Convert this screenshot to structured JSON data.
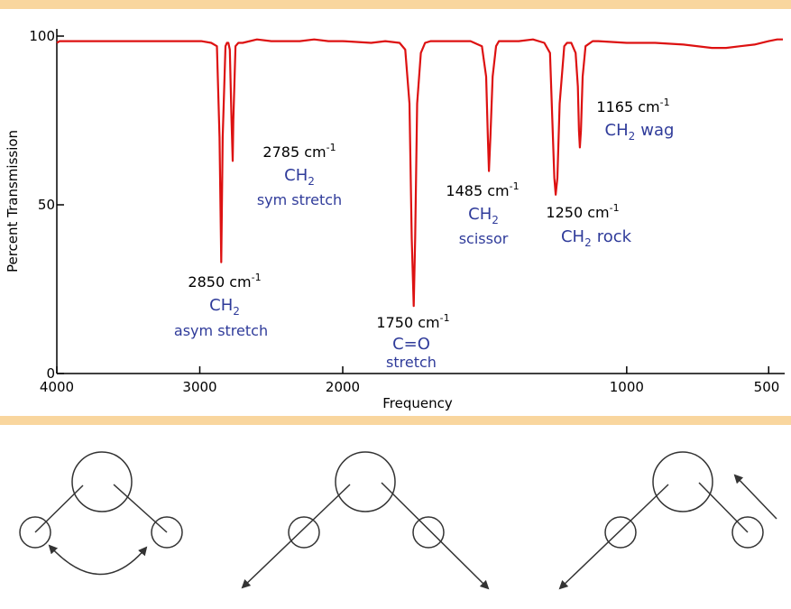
{
  "chart_data": {
    "type": "line",
    "ylabel": "Percent Transmission",
    "xlabel": "Frequency",
    "xlim": [
      4000,
      450
    ],
    "ylim": [
      0,
      100
    ],
    "x_reversed": true,
    "x_ticks": [
      4000,
      3000,
      2000,
      1000,
      500
    ],
    "x_tick_labels": [
      "4000",
      "3000",
      "2000",
      "1000",
      "500"
    ],
    "y_ticks": [
      0,
      50,
      100
    ],
    "y_tick_labels": [
      "0",
      "50",
      "100"
    ],
    "line_color": "#dd1111",
    "series": [
      {
        "x": [
          4000,
          3980,
          3600,
          3300,
          2990,
          2920,
          2880,
          2862,
          2850,
          2840,
          2820,
          2810,
          2800,
          2790,
          2778,
          2770,
          2765,
          2750,
          2730,
          2700,
          2600,
          2500,
          2400,
          2300,
          2200,
          2100,
          2000,
          1900,
          1850,
          1800,
          1780,
          1765,
          1757,
          1750,
          1745,
          1738,
          1725,
          1710,
          1690,
          1650,
          1600,
          1550,
          1510,
          1495,
          1489,
          1485,
          1480,
          1472,
          1460,
          1450,
          1420,
          1380,
          1330,
          1290,
          1270,
          1262,
          1255,
          1250,
          1244,
          1236,
          1220,
          1210,
          1195,
          1180,
          1172,
          1168,
          1165,
          1161,
          1155,
          1145,
          1120,
          1100,
          1000,
          900,
          800,
          700,
          650,
          600,
          550,
          500,
          470,
          450
        ],
        "y": [
          98,
          98.5,
          98.5,
          98.5,
          98.5,
          98,
          97,
          70,
          33,
          70,
          97,
          98,
          98,
          96,
          75,
          63,
          75,
          97,
          98,
          98,
          99,
          98.5,
          98.5,
          98.5,
          99,
          98.5,
          98.5,
          98,
          98.5,
          98,
          96,
          80,
          40,
          20,
          40,
          80,
          95,
          98,
          98.5,
          98.5,
          98.5,
          98.5,
          97,
          88,
          70,
          60,
          70,
          88,
          97,
          98.5,
          98.5,
          98.5,
          99,
          98,
          95,
          75,
          58,
          53,
          58,
          80,
          97,
          98,
          98,
          95,
          85,
          72,
          67,
          72,
          88,
          97,
          98.5,
          98.5,
          98,
          98,
          97.5,
          96.5,
          96.5,
          97,
          97.5,
          98.5,
          99,
          99
        ]
      }
    ],
    "annotations": [
      {
        "wavenumber": "2850 cm",
        "superscript": "-1",
        "group": "CH",
        "group_subscript": "2",
        "mode": "asym stretch"
      },
      {
        "wavenumber": "2785 cm",
        "superscript": "-1",
        "group": "CH",
        "group_subscript": "2",
        "mode": "sym stretch"
      },
      {
        "wavenumber": "1750 cm",
        "superscript": "-1",
        "group": "C=O",
        "group_subscript": "",
        "mode": "stretch"
      },
      {
        "wavenumber": "1485 cm",
        "superscript": "-1",
        "group": "CH",
        "group_subscript": "2",
        "mode": "scissor"
      },
      {
        "wavenumber": "1250 cm",
        "superscript": "-1",
        "group": "CH",
        "group_subscript": "2",
        "mode": "rock"
      },
      {
        "wavenumber": "1165 cm",
        "superscript": "-1",
        "group": "CH",
        "group_subscript": "2",
        "mode": "wag"
      }
    ]
  },
  "colors": {
    "band": "#f9d69e",
    "spectrum": "#dd1111",
    "annotation_blue": "#2f3b9a",
    "diagram_stroke": "#333333"
  }
}
